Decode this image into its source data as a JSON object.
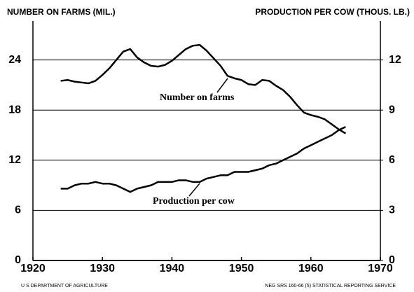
{
  "chart_data": {
    "type": "line",
    "ylabel": "NUMBER ON FARMS (MIL.)",
    "y2label": "PRODUCTION PER COW (THOUS. LB.)",
    "x": [
      1924,
      1925,
      1926,
      1927,
      1928,
      1929,
      1930,
      1931,
      1932,
      1933,
      1934,
      1935,
      1936,
      1937,
      1938,
      1939,
      1940,
      1941,
      1942,
      1943,
      1944,
      1945,
      1946,
      1947,
      1948,
      1949,
      1950,
      1951,
      1952,
      1953,
      1954,
      1955,
      1956,
      1957,
      1958,
      1959,
      1960,
      1961,
      1962,
      1963,
      1964,
      1965
    ],
    "series": [
      {
        "name": "Number on farms",
        "color": "#000000",
        "values": [
          21.5,
          21.6,
          21.4,
          21.3,
          21.2,
          21.5,
          22.2,
          23.0,
          24.0,
          25.0,
          25.3,
          24.3,
          23.7,
          23.3,
          23.2,
          23.4,
          23.9,
          24.6,
          25.3,
          25.7,
          25.8,
          25.1,
          24.2,
          23.3,
          22.1,
          21.8,
          21.6,
          21.1,
          21.0,
          21.6,
          21.5,
          20.9,
          20.4,
          19.6,
          18.6,
          17.7,
          17.4,
          17.2,
          16.9,
          16.3,
          15.7,
          15.2
        ]
      },
      {
        "name": "Production per cow",
        "color": "#000000",
        "axis": "y2",
        "values": [
          4.3,
          4.3,
          4.5,
          4.6,
          4.6,
          4.7,
          4.6,
          4.6,
          4.5,
          4.3,
          4.1,
          4.3,
          4.4,
          4.5,
          4.7,
          4.7,
          4.7,
          4.8,
          4.8,
          4.7,
          4.7,
          4.9,
          5.0,
          5.1,
          5.1,
          5.3,
          5.3,
          5.3,
          5.4,
          5.5,
          5.7,
          5.8,
          6.0,
          6.2,
          6.4,
          6.7,
          6.9,
          7.1,
          7.3,
          7.5,
          7.8,
          8.0
        ]
      }
    ],
    "xlim": [
      1920,
      1970
    ],
    "xticks": [
      1920,
      1930,
      1940,
      1950,
      1960,
      1970
    ],
    "ylim": [
      0,
      30
    ],
    "yticks": [
      0,
      6,
      12,
      18,
      24
    ],
    "y2lim": [
      0,
      15
    ],
    "y2ticks": [
      0,
      3,
      6,
      9,
      12
    ],
    "grid": true,
    "footer_left": "U S DEPARTMENT OF AGRICULTURE",
    "footer_right": "NEG SRS 160-66 (5) STATISTICAL REPORTING SERVICE"
  }
}
